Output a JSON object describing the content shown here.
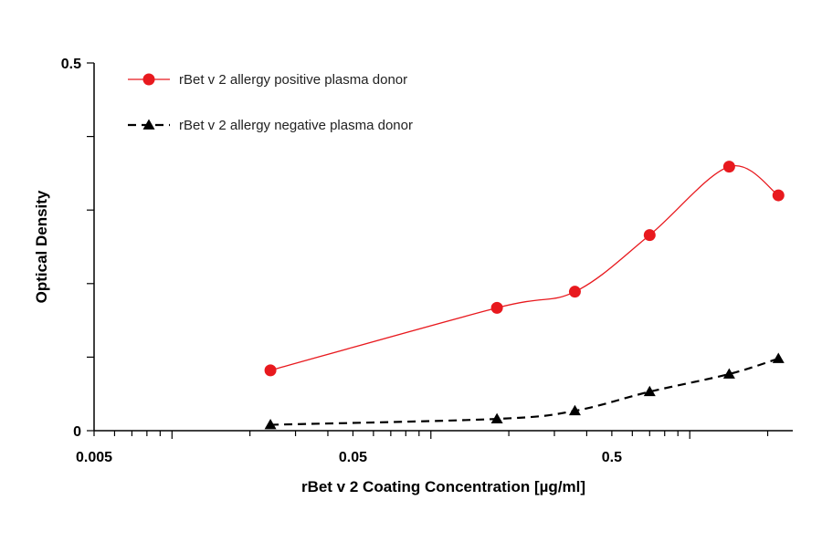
{
  "chart_data": {
    "type": "line",
    "xlabel": "rBet v 2 Coating Concentration [µg/ml]",
    "ylabel": "Optical Density",
    "x_scale": "log",
    "xlim": [
      0.005,
      2.5
    ],
    "ylim": [
      0,
      0.5
    ],
    "x_tick_labels": [
      "0.005",
      "0.05",
      "0.5"
    ],
    "x_tick_values": [
      0.005,
      0.05,
      0.5
    ],
    "y_tick_labels": [
      "0",
      "0.5"
    ],
    "y_tick_values": [
      0,
      0.5
    ],
    "grid": false,
    "legend_position": "top-left",
    "series": [
      {
        "name": "rBet v 2 allergy positive plasma donor",
        "color": "#e8191e",
        "marker": "circle",
        "line_style": "solid",
        "x": [
          0.024,
          0.18,
          0.36,
          0.7,
          1.42,
          2.2
        ],
        "values": [
          0.082,
          0.167,
          0.189,
          0.266,
          0.359,
          0.32
        ]
      },
      {
        "name": "rBet v 2 allergy negative plasma donor",
        "color": "#000000",
        "marker": "triangle",
        "line_style": "dashed",
        "x": [
          0.024,
          0.18,
          0.36,
          0.7,
          1.42,
          2.2
        ],
        "values": [
          0.008,
          0.016,
          0.027,
          0.053,
          0.077,
          0.098
        ]
      }
    ]
  }
}
